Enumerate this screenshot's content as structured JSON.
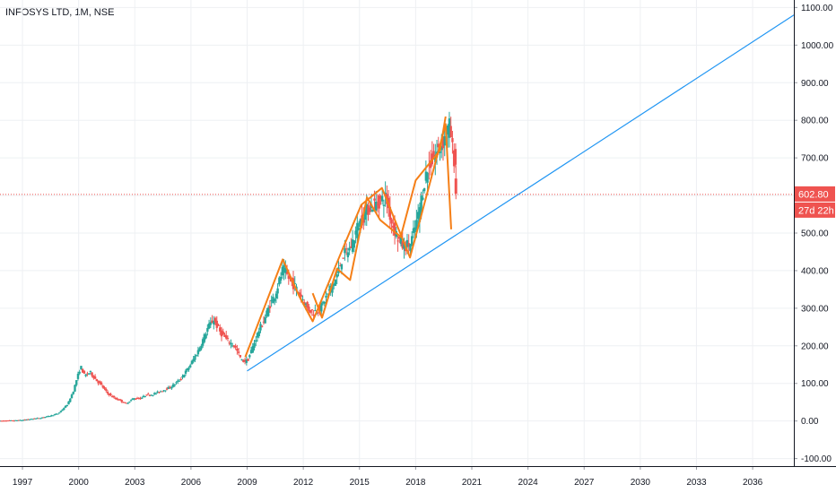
{
  "header": {
    "symbol_title": "INFOSYS LTD, 1M, NSE"
  },
  "price_tags": {
    "last_price": "602.80",
    "countdown": "27d 22h"
  },
  "colors": {
    "up": "#26a69a",
    "down": "#ef5350",
    "trendline": "#2196f3",
    "pattern": "#f57f17",
    "price_line": "#ef5350",
    "grid": "#eef0f3",
    "axis_text": "#131722"
  },
  "chart_data": {
    "type": "candlestick",
    "title": "",
    "xlabel": "",
    "ylabel": "",
    "xlim": [
      1995.8,
      2038.2
    ],
    "ylim": [
      -120,
      1120
    ],
    "x_ticks": [
      "1997",
      "2000",
      "2003",
      "2006",
      "2009",
      "2012",
      "2015",
      "2018",
      "2021",
      "2024",
      "2027",
      "2030",
      "2033",
      "2036"
    ],
    "y_ticks": [
      "-100.00",
      "0.00",
      "100.00",
      "200.00",
      "300.00",
      "400.00",
      "500.00",
      "600.00",
      "700.00",
      "800.00",
      "900.00",
      "1000.00",
      "1100.00"
    ],
    "grid": true,
    "price_series": {
      "name": "",
      "points": [
        [
          1995.8,
          0
        ],
        [
          1996.5,
          1
        ],
        [
          1997,
          2
        ],
        [
          1997.5,
          5
        ],
        [
          1998,
          8
        ],
        [
          1998.5,
          13
        ],
        [
          1999,
          20
        ],
        [
          1999.5,
          45
        ],
        [
          1999.8,
          80
        ],
        [
          2000,
          115
        ],
        [
          2000.2,
          145
        ],
        [
          2000.4,
          120
        ],
        [
          2000.7,
          130
        ],
        [
          2001,
          110
        ],
        [
          2001.3,
          95
        ],
        [
          2001.6,
          75
        ],
        [
          2002,
          60
        ],
        [
          2002.3,
          55
        ],
        [
          2002.6,
          45
        ],
        [
          2003,
          60
        ],
        [
          2003.4,
          60
        ],
        [
          2003.7,
          70
        ],
        [
          2004,
          70
        ],
        [
          2004.5,
          80
        ],
        [
          2005,
          90
        ],
        [
          2005.5,
          110
        ],
        [
          2006,
          145
        ],
        [
          2006.5,
          190
        ],
        [
          2007,
          250
        ],
        [
          2007.3,
          270
        ],
        [
          2007.6,
          240
        ],
        [
          2008,
          215
        ],
        [
          2008.4,
          200
        ],
        [
          2008.8,
          160
        ],
        [
          2009.1,
          160
        ],
        [
          2009.4,
          200
        ],
        [
          2009.7,
          240
        ],
        [
          2010,
          270
        ],
        [
          2010.3,
          310
        ],
        [
          2010.6,
          340
        ],
        [
          2011,
          405
        ],
        [
          2011.3,
          380
        ],
        [
          2011.6,
          360
        ],
        [
          2012,
          330
        ],
        [
          2012.3,
          300
        ],
        [
          2012.6,
          290
        ],
        [
          2013,
          300
        ],
        [
          2013.4,
          340
        ],
        [
          2013.8,
          375
        ],
        [
          2014.2,
          440
        ],
        [
          2014.6,
          460
        ],
        [
          2015,
          520
        ],
        [
          2015.3,
          545
        ],
        [
          2015.6,
          570
        ],
        [
          2016,
          580
        ],
        [
          2016.5,
          595
        ],
        [
          2016.8,
          530
        ],
        [
          2017.1,
          490
        ],
        [
          2017.4,
          465
        ],
        [
          2017.8,
          470
        ],
        [
          2018.2,
          540
        ],
        [
          2018.6,
          650
        ],
        [
          2018.9,
          690
        ],
        [
          2019.3,
          720
        ],
        [
          2019.7,
          760
        ],
        [
          2019.9,
          785
        ],
        [
          2020.05,
          720
        ],
        [
          2020.2,
          685
        ]
      ]
    },
    "last_price": 602.8,
    "trendline": {
      "x": [
        2009,
        2038.2
      ],
      "y": [
        133,
        1080
      ]
    },
    "pattern_polylines": [
      {
        "x": [
          2008.9,
          2010.9,
          2011.8,
          2012.5,
          2014.2,
          2015.1,
          2016.2,
          2017.7,
          2019.6,
          2019.9
        ],
        "y": [
          170,
          430,
          330,
          265,
          470,
          575,
          620,
          435,
          790,
          510
        ]
      },
      {
        "x": [
          2012.5,
          2013,
          2013.8,
          2014.5,
          2015.4,
          2016.1,
          2017.2,
          2018,
          2019.3,
          2019.6
        ],
        "y": [
          340,
          275,
          405,
          375,
          595,
          535,
          490,
          640,
          720,
          810
        ]
      }
    ],
    "sell_candle": {
      "x": 2020.15,
      "open": 645,
      "close": 605,
      "high": 680,
      "low": 590
    }
  }
}
